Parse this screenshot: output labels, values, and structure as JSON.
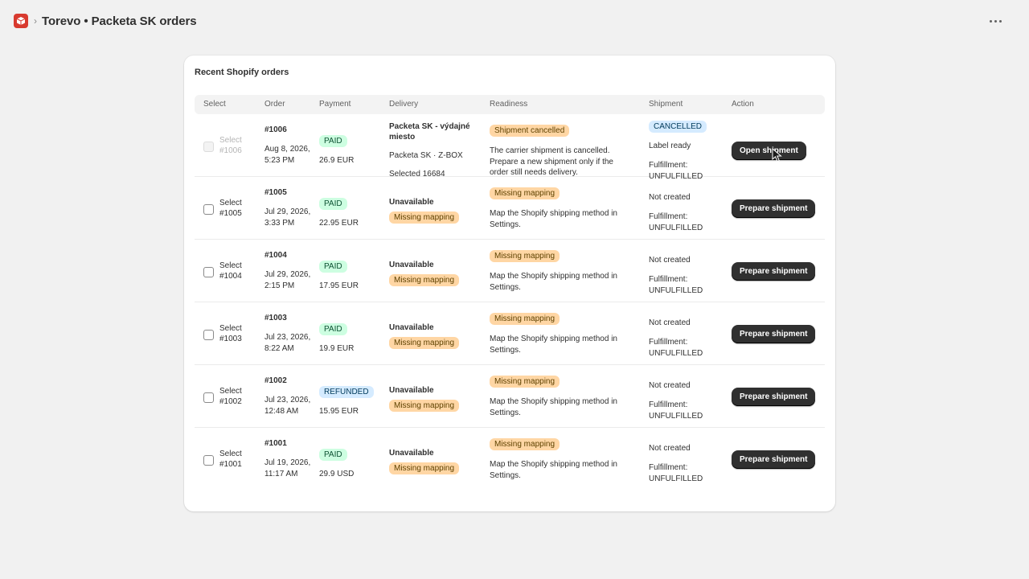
{
  "header": {
    "app_icon": "package-box-icon",
    "separator": "›",
    "title": "Torevo • Packeta SK orders",
    "more_icon": "ellipsis-icon"
  },
  "card": {
    "title": "Recent Shopify orders",
    "columns": [
      "Select",
      "Order",
      "Payment",
      "Delivery",
      "Readiness",
      "Shipment",
      "Action"
    ]
  },
  "orders": [
    {
      "select_label": "Select #1006",
      "order": "#1006",
      "date": "Aug 8, 2026, 5:23 PM",
      "payment": "PAID",
      "amount": "26.9 EUR",
      "delivery_title": "Packeta SK - výdajné miesto",
      "delivery_line2": "Packeta SK · Z-BOX",
      "delivery_line3": "Selected 16684",
      "readiness": "Shipment cancelled",
      "readiness_text": "The carrier shipment is cancelled. Prepare a new shipment only if the order still needs delivery.",
      "shipment_status": "CANCELLED",
      "shipment_label": "Label ready",
      "fulfillment": "Fulfillment: UNFULFILLED",
      "action": "Open shipment"
    },
    {
      "select_label": "Select #1005",
      "order": "#1005",
      "date": "Jul 29, 2026, 3:33 PM",
      "payment": "PAID",
      "amount": "22.95 EUR",
      "delivery_title": "Unavailable",
      "delivery_badge": "Missing mapping",
      "readiness": "Missing mapping",
      "readiness_text": "Map the Shopify shipping method in Settings.",
      "shipment_status": "Not created",
      "fulfillment": "Fulfillment: UNFULFILLED",
      "action": "Prepare shipment"
    },
    {
      "select_label": "Select #1004",
      "order": "#1004",
      "date": "Jul 29, 2026, 2:15 PM",
      "payment": "PAID",
      "amount": "17.95 EUR",
      "delivery_title": "Unavailable",
      "delivery_badge": "Missing mapping",
      "readiness": "Missing mapping",
      "readiness_text": "Map the Shopify shipping method in Settings.",
      "shipment_status": "Not created",
      "fulfillment": "Fulfillment: UNFULFILLED",
      "action": "Prepare shipment"
    },
    {
      "select_label": "Select #1003",
      "order": "#1003",
      "date": "Jul 23, 2026, 8:22 AM",
      "payment": "PAID",
      "amount": "19.9 EUR",
      "delivery_title": "Unavailable",
      "delivery_badge": "Missing mapping",
      "readiness": "Missing mapping",
      "readiness_text": "Map the Shopify shipping method in Settings.",
      "shipment_status": "Not created",
      "fulfillment": "Fulfillment: UNFULFILLED",
      "action": "Prepare shipment"
    },
    {
      "select_label": "Select #1002",
      "order": "#1002",
      "date": "Jul 23, 2026, 12:48 AM",
      "payment": "REFUNDED",
      "amount": "15.95 EUR",
      "delivery_title": "Unavailable",
      "delivery_badge": "Missing mapping",
      "readiness": "Missing mapping",
      "readiness_text": "Map the Shopify shipping method in Settings.",
      "shipment_status": "Not created",
      "fulfillment": "Fulfillment: UNFULFILLED",
      "action": "Prepare shipment"
    },
    {
      "select_label": "Select #1001",
      "order": "#1001",
      "date": "Jul 19, 2026, 11:17 AM",
      "payment": "PAID",
      "amount": "29.9 USD",
      "delivery_title": "Unavailable",
      "delivery_badge": "Missing mapping",
      "readiness": "Missing mapping",
      "readiness_text": "Map the Shopify shipping method in Settings.",
      "shipment_status": "Not created",
      "fulfillment": "Fulfillment: UNFULFILLED",
      "action": "Prepare shipment"
    }
  ],
  "colors": {
    "primary_button": "#303030",
    "paid_badge": "#cdfee1",
    "info_badge": "#d5ebff",
    "warning_badge": "#ffd6a4",
    "app_icon": "#d83a2f"
  }
}
